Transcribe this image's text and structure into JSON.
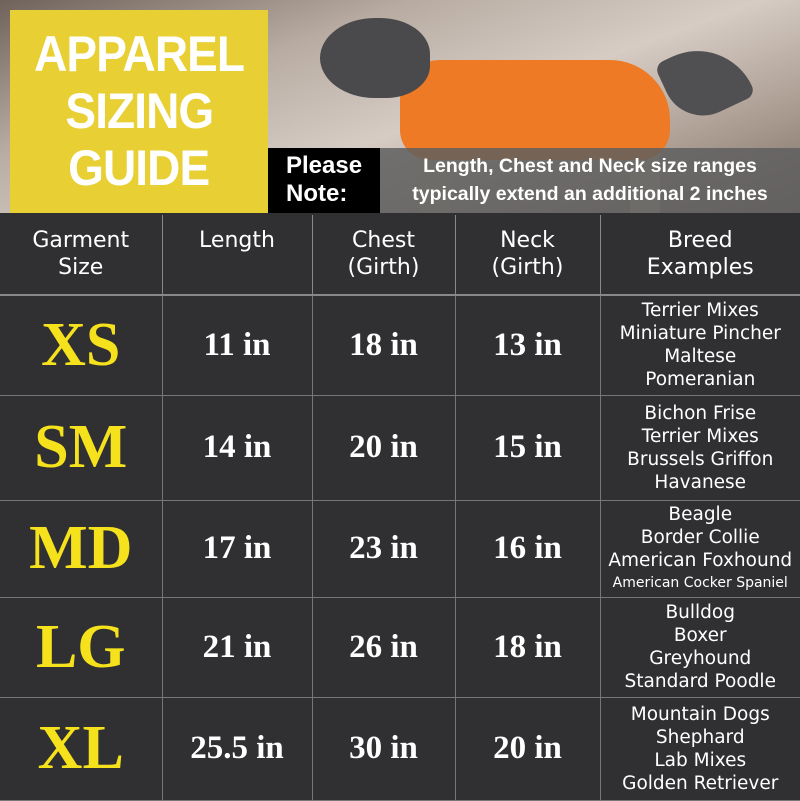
{
  "title_lines": [
    "APPAREL",
    "SIZING",
    "GUIDE"
  ],
  "note": {
    "label_lines": [
      "Please",
      "Note:"
    ],
    "text_lines": [
      "Length, Chest and Neck size ranges",
      "typically extend an additional 2 inches"
    ]
  },
  "headers": [
    [
      "Garment",
      "Size"
    ],
    [
      "Length"
    ],
    [
      "Chest",
      "(Girth)"
    ],
    [
      "Neck",
      "(Girth)"
    ],
    [
      "Breed",
      "Examples"
    ]
  ],
  "rows": [
    {
      "size": "XS",
      "length": "11 in",
      "chest": "18 in",
      "neck": "13 in",
      "breeds": [
        "Terrier Mixes",
        "Miniature Pincher",
        "Maltese",
        "Pomeranian"
      ]
    },
    {
      "size": "SM",
      "length": "14 in",
      "chest": "20 in",
      "neck": "15 in",
      "breeds": [
        "Bichon Frise",
        "Terrier Mixes",
        "Brussels Griffon",
        "Havanese"
      ]
    },
    {
      "size": "MD",
      "length": "17 in",
      "chest": "23 in",
      "neck": "16 in",
      "breeds": [
        "Beagle",
        "Border Collie",
        "American Foxhound",
        "American Cocker Spaniel"
      ]
    },
    {
      "size": "LG",
      "length": "21 in",
      "chest": "26 in",
      "neck": "18 in",
      "breeds": [
        "Bulldog",
        "Boxer",
        "Greyhound",
        "Standard Poodle"
      ]
    },
    {
      "size": "XL",
      "length": "25.5 in",
      "chest": "30 in",
      "neck": "20 in",
      "breeds": [
        "Mountain Dogs",
        "Shephard",
        "Lab Mixes",
        "Golden Retriever"
      ]
    }
  ],
  "colors": {
    "title_bg": "#e8cf34",
    "size_text": "#f5e21c",
    "table_bg": "#303032",
    "jacket": "#ef7a25"
  }
}
